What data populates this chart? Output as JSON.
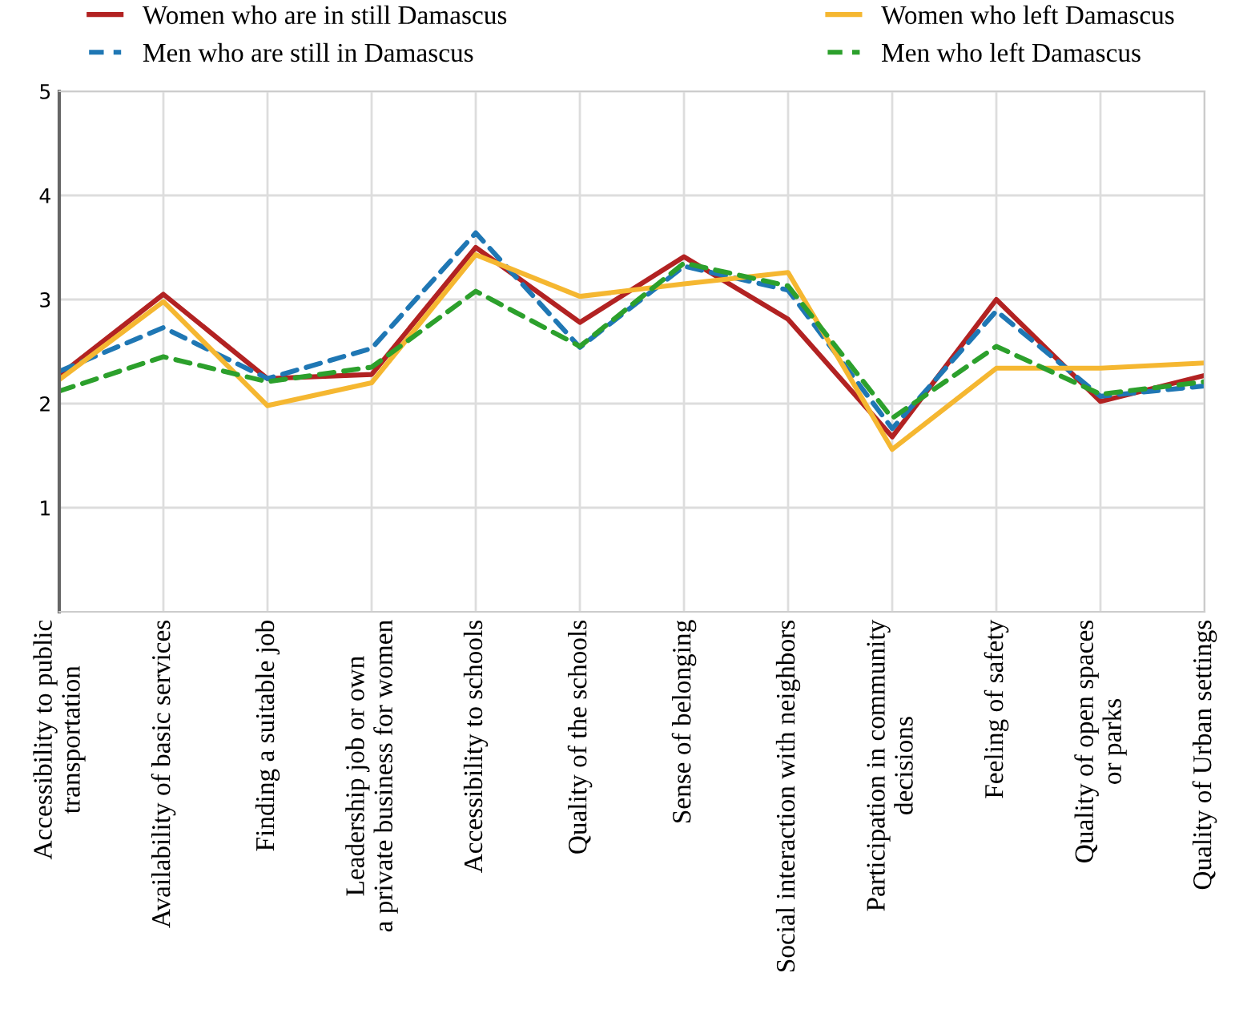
{
  "chart_data": {
    "type": "line",
    "categories": [
      "Accessibility to public\ntransportation",
      "Availability of basic services",
      "Finding a suitable job",
      "Leadership job or own\na private business for women",
      "Accessibility to schools",
      "Quality of the schools",
      "Sense of belonging",
      "Social interaction with neighbors",
      "Participation in community\ndecisions",
      "Feeling of safety",
      "Quality of open spaces\nor parks",
      "Quality of Urban settings"
    ],
    "series": [
      {
        "name": "Women who are in still Damascus",
        "color": "#b22222",
        "line_style": "solid",
        "values": [
          2.27,
          3.05,
          2.24,
          2.28,
          3.5,
          2.78,
          3.41,
          2.81,
          1.68,
          3.0,
          2.02,
          2.27
        ]
      },
      {
        "name": "Men who are still in Damascus",
        "color": "#1f77b4",
        "line_style": "dashed",
        "values": [
          2.31,
          2.73,
          2.24,
          2.53,
          3.64,
          2.54,
          3.32,
          3.09,
          1.76,
          2.89,
          2.07,
          2.17
        ]
      },
      {
        "name": "Women who left Damascus",
        "color": "#f5b731",
        "line_style": "solid",
        "values": [
          2.23,
          2.98,
          1.98,
          2.2,
          3.43,
          3.03,
          3.15,
          3.26,
          1.56,
          2.34,
          2.34,
          2.39
        ]
      },
      {
        "name": "Men who left Damascus",
        "color": "#2ca02c",
        "line_style": "dashed",
        "values": [
          2.12,
          2.45,
          2.21,
          2.35,
          3.08,
          2.55,
          3.35,
          3.13,
          1.86,
          2.55,
          2.09,
          2.21
        ]
      }
    ],
    "ylim": [
      0,
      5
    ],
    "yticks": [
      1,
      2,
      3,
      4,
      5
    ],
    "grid": true,
    "legend": "top",
    "marker": "none"
  }
}
